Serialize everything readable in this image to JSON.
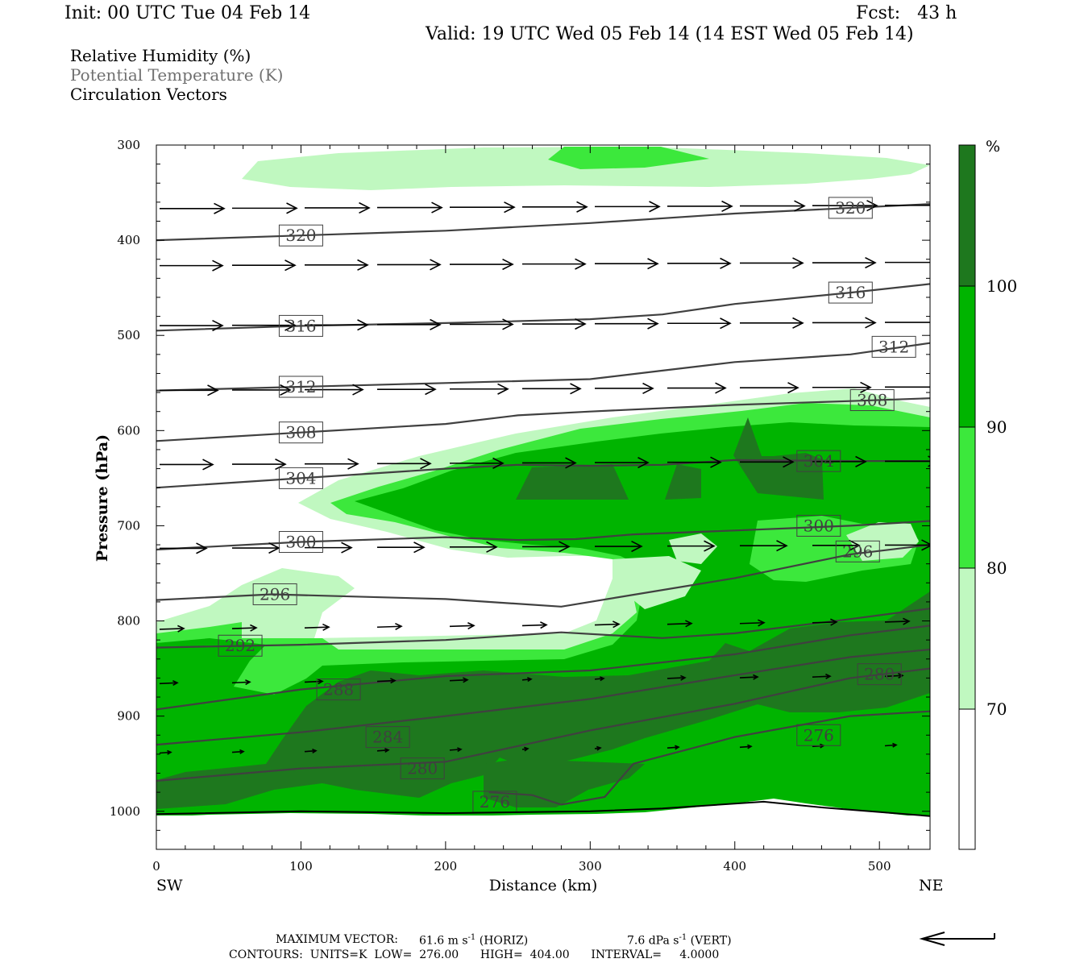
{
  "header": {
    "init": "Init: 00 UTC Tue 04 Feb 14",
    "fcst": "Fcst:   43 h",
    "valid": "Valid: 19 UTC Wed 05 Feb 14 (14 EST Wed 05 Feb 14)"
  },
  "legend": {
    "line1": "Relative Humidity (%)",
    "line2": "Potential Temperature (K)",
    "line3": "Circulation Vectors"
  },
  "footer": {
    "max_vector_label": "MAXIMUM VECTOR:",
    "max_horiz": "61.6 m s",
    "horiz_tag": "(HORIZ)",
    "max_vert": "7.6 dPa s",
    "vert_tag": "(VERT)",
    "exponent": "-1",
    "contours": "CONTOURS:  UNITS=K  LOW=  276.00      HIGH=  404.00      INTERVAL=     4.0000"
  },
  "chart_data": {
    "type": "filled-contour cross-section",
    "ylabel": "Pressure (hPa)",
    "xlabel": "Distance (km)",
    "x_left_label": "SW",
    "x_right_label": "NE",
    "xlim": [
      0,
      535
    ],
    "ylim": [
      1040,
      300
    ],
    "x_ticks": [
      0,
      100,
      200,
      300,
      400,
      500
    ],
    "y_ticks": [
      300,
      400,
      500,
      600,
      700,
      800,
      900,
      1000
    ],
    "colorbar": {
      "unit": "%",
      "levels": [
        70,
        80,
        90,
        100
      ],
      "colors": [
        "#ffffff",
        "#c0f8c0",
        "#3ce83c",
        "#00b400",
        "#1e781e"
      ]
    },
    "theta_contours": [
      {
        "label": "320",
        "points": [
          [
            0,
            400
          ],
          [
            100,
            395
          ],
          [
            200,
            390
          ],
          [
            300,
            382
          ],
          [
            400,
            372
          ],
          [
            480,
            366
          ],
          [
            535,
            362
          ]
        ]
      },
      {
        "label": "316",
        "points": [
          [
            0,
            495
          ],
          [
            100,
            490
          ],
          [
            200,
            487
          ],
          [
            300,
            483
          ],
          [
            350,
            478
          ],
          [
            400,
            467
          ],
          [
            480,
            455
          ],
          [
            535,
            446
          ]
        ]
      },
      {
        "label": "312",
        "points": [
          [
            0,
            558
          ],
          [
            100,
            554
          ],
          [
            200,
            550
          ],
          [
            300,
            546
          ],
          [
            350,
            537
          ],
          [
            400,
            528
          ],
          [
            480,
            520
          ],
          [
            535,
            508
          ]
        ]
      },
      {
        "label": "308",
        "points": [
          [
            0,
            611
          ],
          [
            100,
            602
          ],
          [
            200,
            593
          ],
          [
            250,
            584
          ],
          [
            300,
            580
          ],
          [
            400,
            573
          ],
          [
            480,
            569
          ],
          [
            535,
            566
          ]
        ]
      },
      {
        "label": "304",
        "points": [
          [
            0,
            660
          ],
          [
            100,
            650
          ],
          [
            200,
            640
          ],
          [
            250,
            636
          ],
          [
            300,
            637
          ],
          [
            350,
            636
          ],
          [
            400,
            631
          ],
          [
            480,
            632
          ],
          [
            535,
            632
          ]
        ]
      },
      {
        "label": "300",
        "points": [
          [
            0,
            725
          ],
          [
            100,
            717
          ],
          [
            200,
            712
          ],
          [
            250,
            715
          ],
          [
            290,
            714
          ],
          [
            330,
            709
          ],
          [
            400,
            705
          ],
          [
            480,
            700
          ],
          [
            535,
            695
          ]
        ]
      },
      {
        "label": "296",
        "points": [
          [
            0,
            778
          ],
          [
            80,
            772
          ],
          [
            200,
            777
          ],
          [
            280,
            785
          ],
          [
            320,
            775
          ],
          [
            400,
            755
          ],
          [
            480,
            730
          ],
          [
            535,
            720
          ]
        ]
      },
      {
        "label": "292",
        "points": [
          [
            0,
            828
          ],
          [
            100,
            825
          ],
          [
            200,
            820
          ],
          [
            280,
            812
          ],
          [
            350,
            818
          ],
          [
            400,
            813
          ],
          [
            480,
            798
          ],
          [
            535,
            787
          ]
        ]
      },
      {
        "label": "288",
        "points": [
          [
            0,
            893
          ],
          [
            100,
            872
          ],
          [
            200,
            858
          ],
          [
            300,
            852
          ],
          [
            400,
            835
          ],
          [
            480,
            815
          ],
          [
            535,
            805
          ]
        ]
      },
      {
        "label": "284",
        "points": [
          [
            0,
            930
          ],
          [
            100,
            917
          ],
          [
            200,
            900
          ],
          [
            300,
            882
          ],
          [
            400,
            857
          ],
          [
            480,
            838
          ],
          [
            535,
            830
          ]
        ]
      },
      {
        "label": "280",
        "points": [
          [
            0,
            968
          ],
          [
            100,
            955
          ],
          [
            200,
            948
          ],
          [
            300,
            915
          ],
          [
            400,
            887
          ],
          [
            480,
            860
          ],
          [
            535,
            850
          ]
        ]
      },
      {
        "label": "276",
        "points": [
          [
            230,
            980
          ],
          [
            260,
            983
          ],
          [
            280,
            993
          ],
          [
            310,
            985
          ],
          [
            330,
            950
          ],
          [
            400,
            922
          ],
          [
            480,
            900
          ],
          [
            535,
            895
          ]
        ]
      }
    ],
    "wind_vectors": {
      "levels_hPa": [
        365,
        425,
        488,
        556,
        634,
        722,
        805,
        862,
        935
      ],
      "note": "mostly left-to-right horizontal circulation vectors, weaker near surface"
    },
    "surface_pressure": [
      [
        0,
        1003
      ],
      [
        100,
        1000
      ],
      [
        200,
        1002
      ],
      [
        300,
        1000
      ],
      [
        350,
        997
      ],
      [
        420,
        990
      ],
      [
        460,
        996
      ],
      [
        535,
        1005
      ]
    ]
  }
}
